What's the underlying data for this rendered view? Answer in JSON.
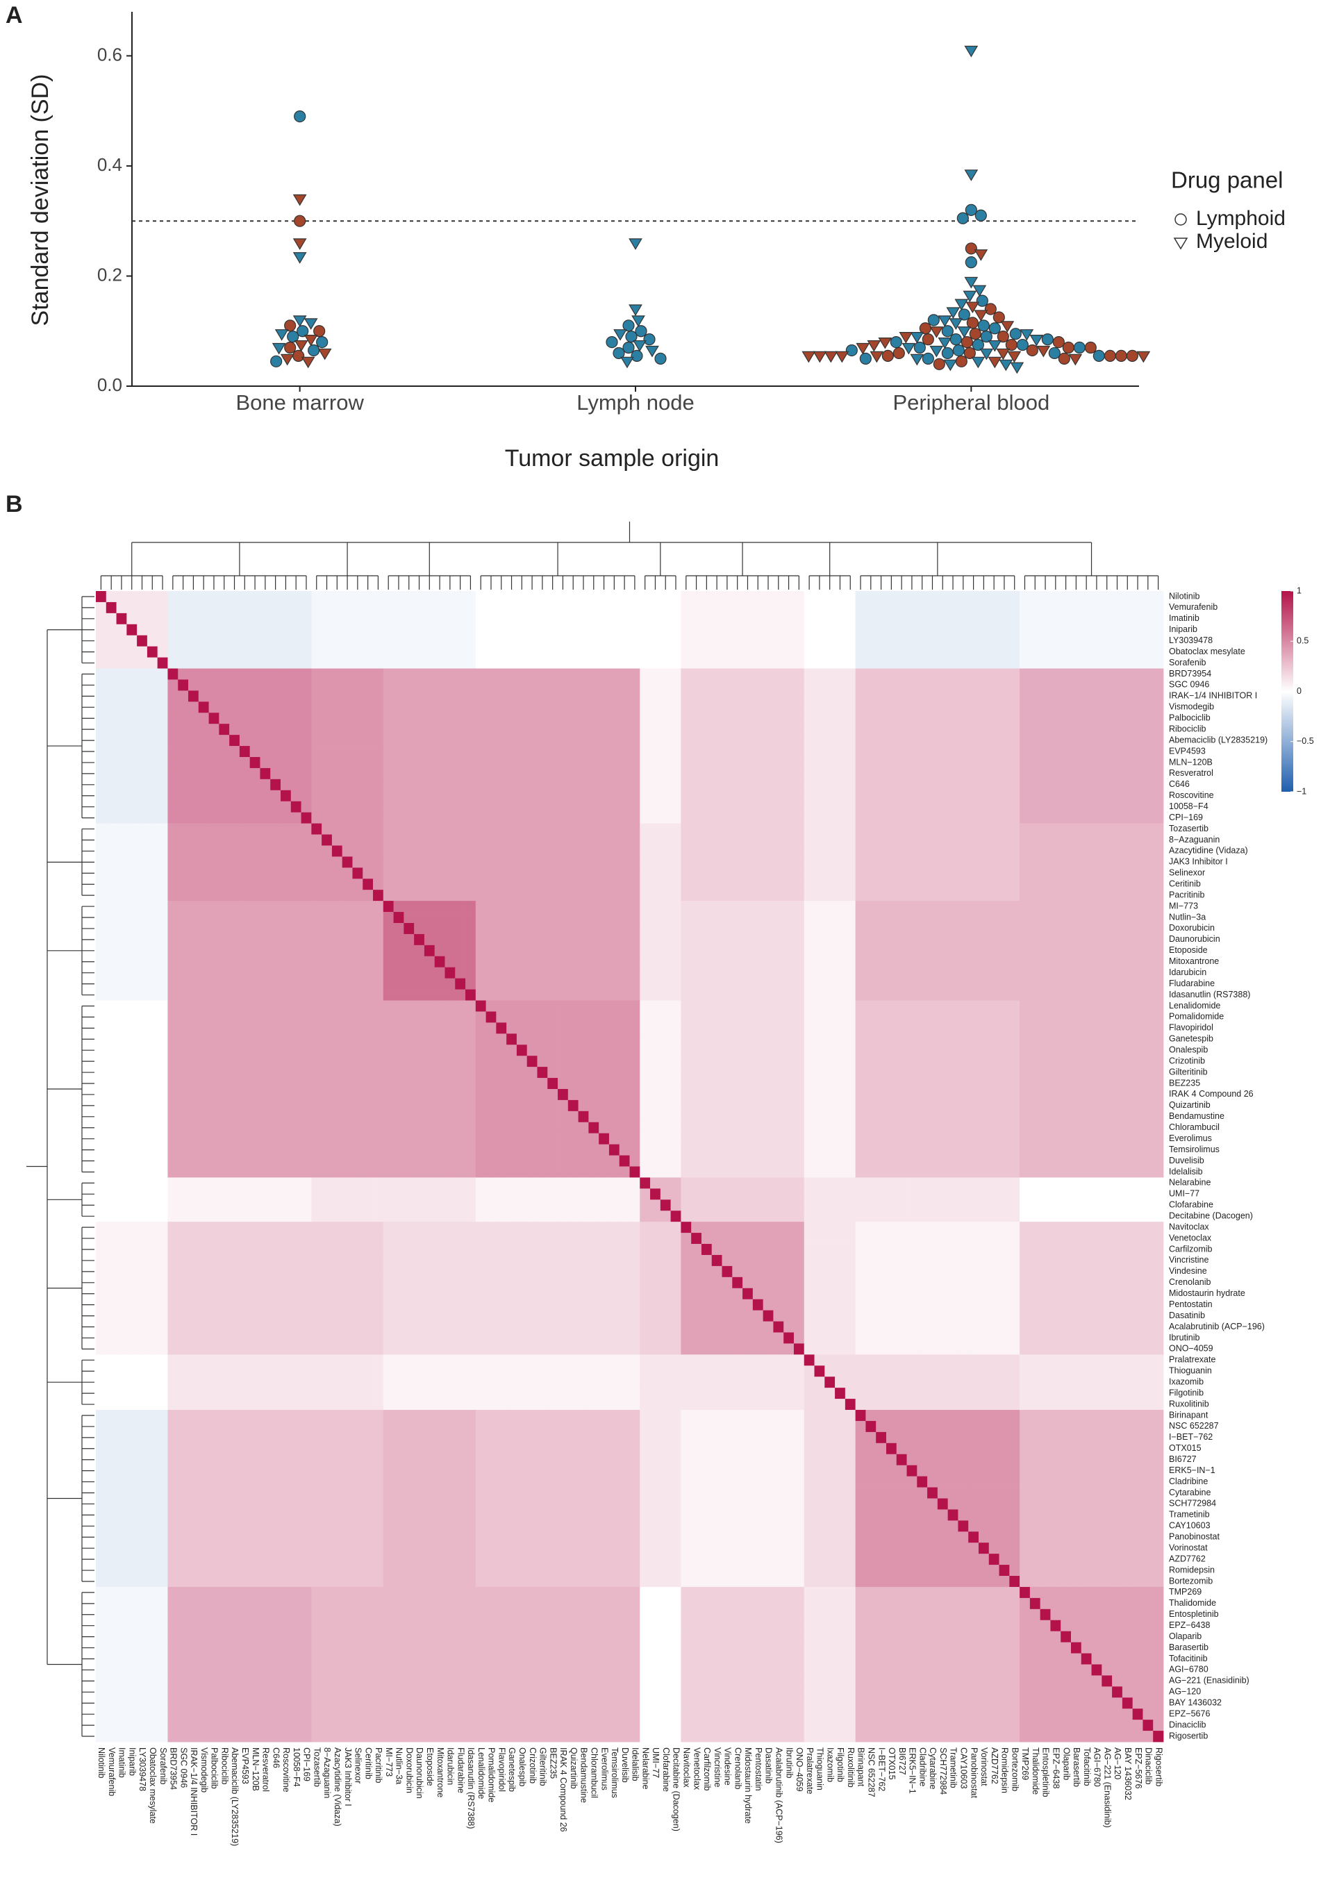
{
  "chart_data": [
    {
      "type": "beeswarm",
      "panel_label": "A",
      "y_label": "Standard deviation (SD)",
      "x_label": "Tumor sample origin",
      "categories": [
        "Bone marrow",
        "Lymph node",
        "Peripheral blood"
      ],
      "ylim": [
        0,
        0.68
      ],
      "yticks": [
        {
          "value": 0,
          "label": "0.0"
        },
        {
          "value": 0.2,
          "label": "0.2"
        },
        {
          "value": 0.4,
          "label": "0.4"
        },
        {
          "value": 0.6,
          "label": "0.6"
        }
      ],
      "hline": 0.3,
      "legend_title": "Drug panel",
      "legend": [
        {
          "name": "Lymphoid",
          "shape": "circle"
        },
        {
          "name": "Myeloid",
          "shape": "triangle"
        }
      ],
      "point_colors": [
        "#2b7fa3",
        "#a3462c"
      ],
      "groups": [
        {
          "values": [
            0.49,
            0.34,
            0.3,
            0.26,
            0.235,
            0.12,
            0.115,
            0.11,
            0.1,
            0.1,
            0.095,
            0.09,
            0.085,
            0.08,
            0.075,
            0.07,
            0.07,
            0.065,
            0.06,
            0.055,
            0.05,
            0.045,
            0.045
          ],
          "shapes": [
            "circle",
            "triangle",
            "circle",
            "triangle",
            "triangle",
            "triangle",
            "triangle",
            "circle",
            "circle",
            "circle",
            "triangle",
            "circle",
            "triangle",
            "circle",
            "triangle",
            "circle",
            "triangle",
            "circle",
            "triangle",
            "circle",
            "triangle",
            "triangle",
            "circle"
          ],
          "colors": [
            0,
            1,
            1,
            1,
            0,
            0,
            0,
            1,
            0,
            1,
            0,
            0,
            1,
            0,
            1,
            1,
            0,
            0,
            1,
            1,
            1,
            1,
            0
          ]
        },
        {
          "values": [
            0.26,
            0.14,
            0.12,
            0.11,
            0.1,
            0.095,
            0.09,
            0.085,
            0.08,
            0.075,
            0.07,
            0.065,
            0.06,
            0.055,
            0.05,
            0.045
          ],
          "shapes": [
            "triangle",
            "triangle",
            "triangle",
            "circle",
            "circle",
            "triangle",
            "circle",
            "circle",
            "circle",
            "triangle",
            "circle",
            "triangle",
            "circle",
            "circle",
            "circle",
            "triangle"
          ],
          "colors": [
            0,
            0,
            0,
            0,
            0,
            0,
            0,
            0,
            0,
            0,
            0,
            0,
            0,
            0,
            0,
            0
          ]
        },
        {
          "values": [
            0.61,
            0.385,
            0.32,
            0.31,
            0.305,
            0.25,
            0.24,
            0.225,
            0.19,
            0.175,
            0.165,
            0.155,
            0.15,
            0.145,
            0.14,
            0.135,
            0.13,
            0.13,
            0.125,
            0.12,
            0.12,
            0.115,
            0.115,
            0.11,
            0.11,
            0.105,
            0.105,
            0.1,
            0.1,
            0.1,
            0.095,
            0.095,
            0.095,
            0.09,
            0.09,
            0.09,
            0.09,
            0.085,
            0.085,
            0.085,
            0.085,
            0.08,
            0.08,
            0.08,
            0.08,
            0.08,
            0.075,
            0.075,
            0.075,
            0.075,
            0.075,
            0.07,
            0.07,
            0.07,
            0.07,
            0.07,
            0.07,
            0.065,
            0.065,
            0.065,
            0.065,
            0.065,
            0.06,
            0.06,
            0.06,
            0.06,
            0.06,
            0.06,
            0.055,
            0.055,
            0.055,
            0.055,
            0.055,
            0.055,
            0.055,
            0.055,
            0.055,
            0.055,
            0.055,
            0.055,
            0.05,
            0.05,
            0.05,
            0.05,
            0.05,
            0.045,
            0.045,
            0.045,
            0.04,
            0.04,
            0.04,
            0.035
          ],
          "shapes": [
            "triangle",
            "triangle",
            "circle",
            "circle",
            "circle",
            "circle",
            "triangle",
            "circle",
            "triangle",
            "triangle",
            "triangle",
            "circle",
            "triangle",
            "triangle",
            "circle",
            "triangle",
            "circle",
            "triangle",
            "circle",
            "triangle",
            "circle",
            "circle",
            "triangle",
            "circle",
            "triangle",
            "circle",
            "circle",
            "triangle",
            "circle",
            "triangle",
            "circle",
            "circle",
            "triangle",
            "circle",
            "circle",
            "triangle",
            "triangle",
            "circle",
            "circle",
            "triangle",
            "circle",
            "circle",
            "triangle",
            "circle",
            "triangle",
            "circle",
            "circle",
            "triangle",
            "circle",
            "circle",
            "triangle",
            "circle",
            "triangle",
            "circle",
            "circle",
            "triangle",
            "circle",
            "circle",
            "triangle",
            "circle",
            "triangle",
            "circle",
            "circle",
            "triangle",
            "circle",
            "triangle",
            "circle",
            "circle",
            "triangle",
            "circle",
            "triangle",
            "circle",
            "triangle",
            "circle",
            "triangle",
            "circle",
            "triangle",
            "circle",
            "triangle",
            "triangle",
            "circle",
            "triangle",
            "circle",
            "triangle",
            "circle",
            "triangle",
            "circle",
            "triangle",
            "triangle",
            "circle",
            "triangle",
            "triangle"
          ],
          "colors": [
            0,
            0,
            0,
            0,
            0,
            1,
            1,
            0,
            0,
            0,
            0,
            0,
            0,
            1,
            1,
            0,
            0,
            1,
            1,
            0,
            0,
            1,
            0,
            0,
            1,
            0,
            1,
            0,
            0,
            1,
            1,
            0,
            0,
            0,
            1,
            0,
            1,
            0,
            1,
            0,
            0,
            1,
            0,
            0,
            1,
            1,
            0,
            0,
            1,
            0,
            1,
            0,
            0,
            1,
            0,
            1,
            1,
            0,
            0,
            1,
            1,
            0,
            1,
            0,
            0,
            1,
            1,
            0,
            1,
            1,
            1,
            0,
            1,
            1,
            1,
            1,
            1,
            1,
            1,
            1,
            0,
            0,
            1,
            1,
            0,
            0,
            1,
            1,
            0,
            1,
            0,
            0
          ]
        }
      ]
    },
    {
      "type": "heatmap",
      "panel_label": "B",
      "labels": [
        "Nilotinib",
        "Vemurafenib",
        "Imatinib",
        "Iniparib",
        "LY3039478",
        "Obatoclax mesylate",
        "Sorafenib",
        "BRD73954",
        "SGC 0946",
        "IRAK−1/4 INHIBITOR I",
        "Vismodegib",
        "Palbociclib",
        "Ribociclib",
        "Abemaciclib (LY2835219)",
        "EVP4593",
        "MLN−120B",
        "Resveratrol",
        "C646",
        "Roscovitine",
        "10058−F4",
        "CPI−169",
        "Tozasertib",
        "8−Azaguanin",
        "Azacytidine (Vidaza)",
        "JAK3 Inhibitor I",
        "Selinexor",
        "Ceritinib",
        "Pacritinib",
        "MI−773",
        "Nutlin−3a",
        "Doxorubicin",
        "Daunorubicin",
        "Etoposide",
        "Mitoxantrone",
        "Idarubicin",
        "Fludarabine",
        "Idasanutlin (RS7388)",
        "Lenalidomide",
        "Pomalidomide",
        "Flavopiridol",
        "Ganetespib",
        "Onalespib",
        "Crizotinib",
        "Gilteritinib",
        "BEZ235",
        "IRAK 4 Compound 26",
        "Quizartinib",
        "Bendamustine",
        "Chlorambucil",
        "Everolimus",
        "Temsirolimus",
        "Duvelisib",
        "Idelalisib",
        "Nelarabine",
        "UMI−77",
        "Clofarabine",
        "Decitabine (Dacogen)",
        "Navitoclax",
        "Venetoclax",
        "Carfilzomib",
        "Vincristine",
        "Vindesine",
        "Crenolanib",
        "Midostaurin hydrate",
        "Pentostatin",
        "Dasatinib",
        "Acalabrutinib (ACP−196)",
        "Ibrutinib",
        "ONO−4059",
        "Pralatrexate",
        "Thioguanin",
        "Ixazomib",
        "Filgotinib",
        "Ruxolitinib",
        "Birinapant",
        "NSC 652287",
        "I−BET−762",
        "OTX015",
        "BI6727",
        "ERK5−IN−1",
        "Cladribine",
        "Cytarabine",
        "SCH772984",
        "Trametinib",
        "CAY10603",
        "Panobinostat",
        "Vorinostat",
        "AZD7762",
        "Romidepsin",
        "Bortezomib",
        "TMP269",
        "Thalidomide",
        "Entospletinib",
        "EPZ−6438",
        "Olaparib",
        "Barasertib",
        "Tofacitinib",
        "AGI−6780",
        "AG−221 (Enasidinib)",
        "AG−120",
        "BAY 1436032",
        "EPZ−5676",
        "Dinaciclib",
        "Rigosertib"
      ],
      "cluster": [
        0,
        0,
        0,
        0,
        0,
        0,
        0,
        1,
        1,
        1,
        1,
        1,
        1,
        1,
        1,
        1,
        1,
        1,
        1,
        1,
        1,
        2,
        2,
        2,
        2,
        2,
        2,
        2,
        3,
        3,
        3,
        3,
        3,
        3,
        3,
        3,
        3,
        4,
        4,
        4,
        4,
        4,
        4,
        4,
        4,
        4,
        4,
        4,
        4,
        4,
        4,
        4,
        4,
        5,
        5,
        5,
        5,
        6,
        6,
        6,
        6,
        6,
        6,
        6,
        6,
        6,
        6,
        6,
        6,
        7,
        7,
        7,
        7,
        7,
        8,
        8,
        8,
        8,
        8,
        8,
        8,
        8,
        8,
        8,
        8,
        8,
        8,
        8,
        8,
        8,
        9,
        9,
        9,
        9,
        9,
        9,
        9,
        9,
        9,
        9,
        9,
        9,
        9,
        9
      ],
      "cluster_correlation": [
        [
          0.1,
          -0.1,
          -0.05,
          -0.05,
          0,
          0,
          0.05,
          0,
          -0.1,
          -0.05
        ],
        [
          -0.1,
          0.5,
          0.45,
          0.4,
          0.4,
          0.05,
          0.2,
          0.1,
          0.25,
          0.35
        ],
        [
          -0.05,
          0.45,
          0.45,
          0.4,
          0.4,
          0.1,
          0.2,
          0.1,
          0.25,
          0.3
        ],
        [
          -0.05,
          0.4,
          0.4,
          0.6,
          0.4,
          0.1,
          0.15,
          0.05,
          0.3,
          0.3
        ],
        [
          0,
          0.4,
          0.4,
          0.4,
          0.45,
          0.05,
          0.15,
          0.05,
          0.25,
          0.3
        ],
        [
          0,
          0.05,
          0.1,
          0.1,
          0.05,
          0.3,
          0.2,
          0.1,
          0.1,
          0
        ],
        [
          0.05,
          0.2,
          0.2,
          0.15,
          0.15,
          0.2,
          0.4,
          0.1,
          0.05,
          0.2
        ],
        [
          0,
          0.1,
          0.1,
          0.05,
          0.05,
          0.1,
          0.1,
          0.15,
          0.15,
          0.1
        ],
        [
          -0.1,
          0.25,
          0.25,
          0.3,
          0.25,
          0.1,
          0.05,
          0.15,
          0.45,
          0.3
        ],
        [
          -0.05,
          0.35,
          0.3,
          0.3,
          0.3,
          0,
          0.2,
          0.1,
          0.3,
          0.4
        ]
      ],
      "self_correlation": 1,
      "colorbar_lim": [
        -1,
        1
      ],
      "colorbar_ticks": [
        1,
        0.5,
        0,
        {
          "value": -0.5,
          "label": "−0.5"
        },
        {
          "value": -1,
          "label": "−1"
        }
      ],
      "colors": {
        "low": "#1f5fae",
        "mid": "#ffffff",
        "high": "#b3134a"
      }
    }
  ]
}
